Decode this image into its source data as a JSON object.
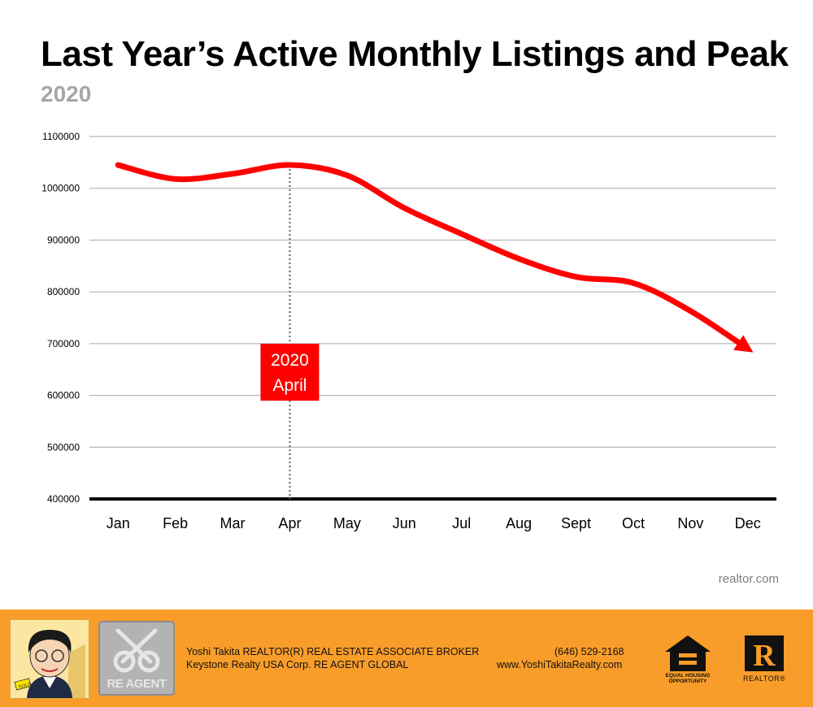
{
  "chart_data": {
    "type": "line",
    "title": "Last Year’s Active Monthly Listings and Peak",
    "subtitle": "2020",
    "categories": [
      "Jan",
      "Feb",
      "Mar",
      "Apr",
      "May",
      "Jun",
      "Jul",
      "Aug",
      "Sept",
      "Oct",
      "Nov",
      "Dec"
    ],
    "series": [
      {
        "name": "Active Monthly Listings",
        "values": [
          1045000,
          1018000,
          1028000,
          1045000,
          1025000,
          962000,
          912000,
          864000,
          829000,
          817000,
          763000,
          690000
        ],
        "color": "#ff0000"
      }
    ],
    "yticks": [
      "400000",
      "500000",
      "600000",
      "700000",
      "800000",
      "900000",
      "1000000",
      "1100000"
    ],
    "ylim": [
      400000,
      1100000
    ],
    "grid": true,
    "annotation": {
      "category": "Apr",
      "line1": "2020",
      "line2": "April",
      "color": "#ff0000"
    },
    "source": "realtor.com"
  },
  "footer": {
    "agent_line1": "Yoshi Takita REALTOR(R) REAL ESTATE ASSOCIATE BROKER",
    "agent_line2": "Keystone Realty USA Corp.  RE AGENT GLOBAL",
    "phone": "(646) 529-2168",
    "website": "www.YoshiTakitaRealty.com",
    "reagent_logo": "RE AGENT",
    "eho_text_1": "EQUAL HOUSING",
    "eho_text_2": "OPPORTUNITY",
    "realtor_text": "REALTOR®",
    "realtor_letter": "R",
    "avatar_sign": "SOLD"
  }
}
